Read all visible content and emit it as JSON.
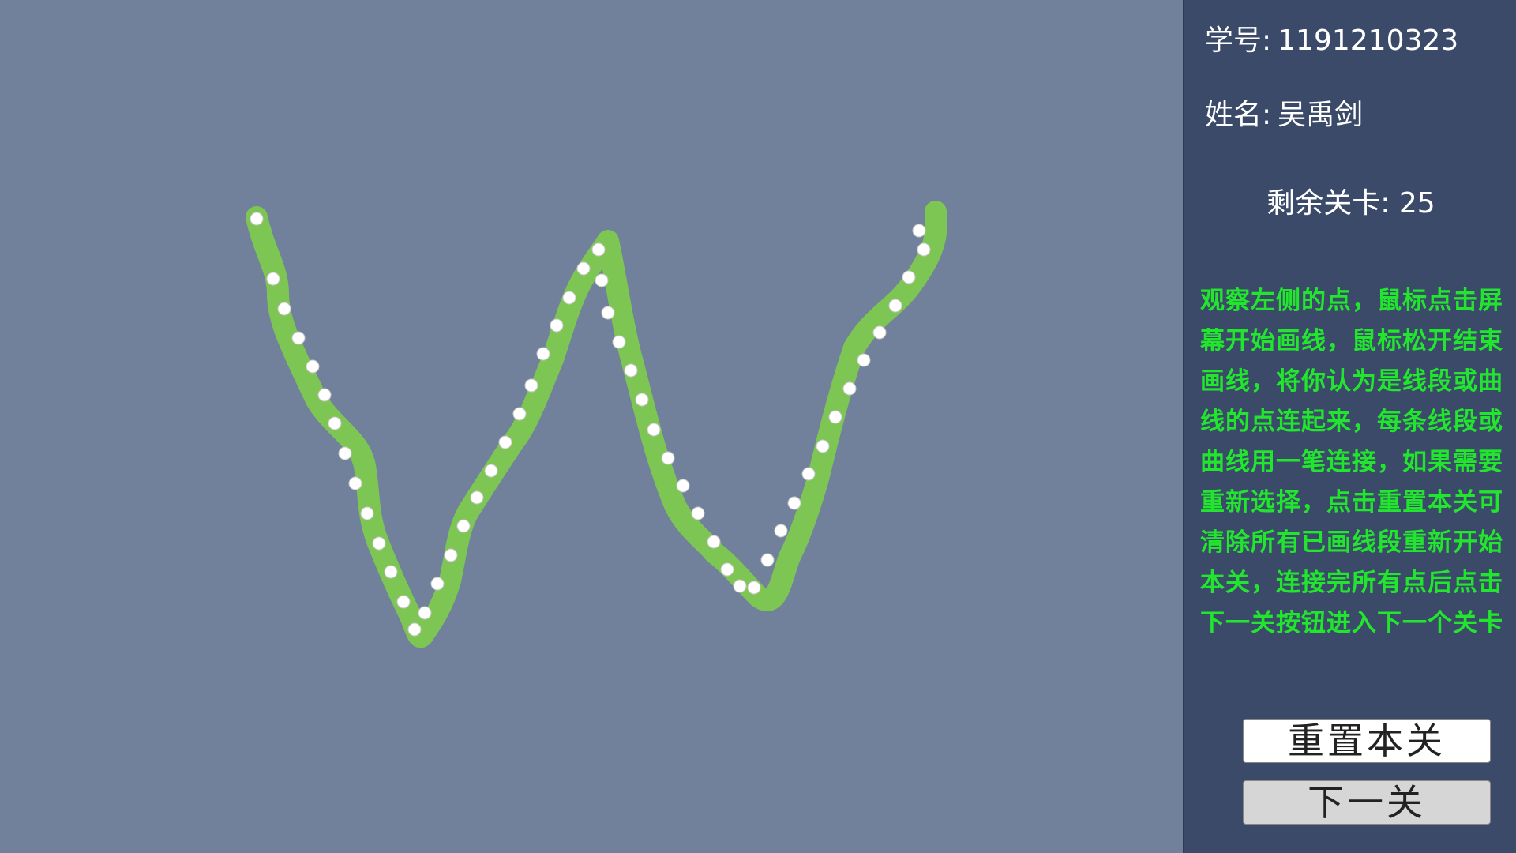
{
  "sidebar": {
    "student_id_label": "学号:",
    "student_id_value": "1191210323",
    "name_label": "姓名:",
    "name_value": "吴禹剑",
    "levels_remaining": "剩余关卡: 25",
    "instructions": "观察左侧的点，鼠标点击屏幕开始画线，鼠标松开结束画线，将你认为是线段或曲线的点连起来，每条线段或曲线用一笔连接，如果需要重新选择，点击重置本关可清除所有已画线段重新开始本关，连接完所有点后点击下一关按钮进入下一个关卡",
    "reset_button": "重置本关",
    "next_button": "下一关"
  },
  "colors": {
    "canvas_bg": "#71819c",
    "sidebar_bg": "#3a4a68",
    "stroke": "#7ec653",
    "dot": "#ffffff",
    "instructions_text": "#22e62e"
  }
}
